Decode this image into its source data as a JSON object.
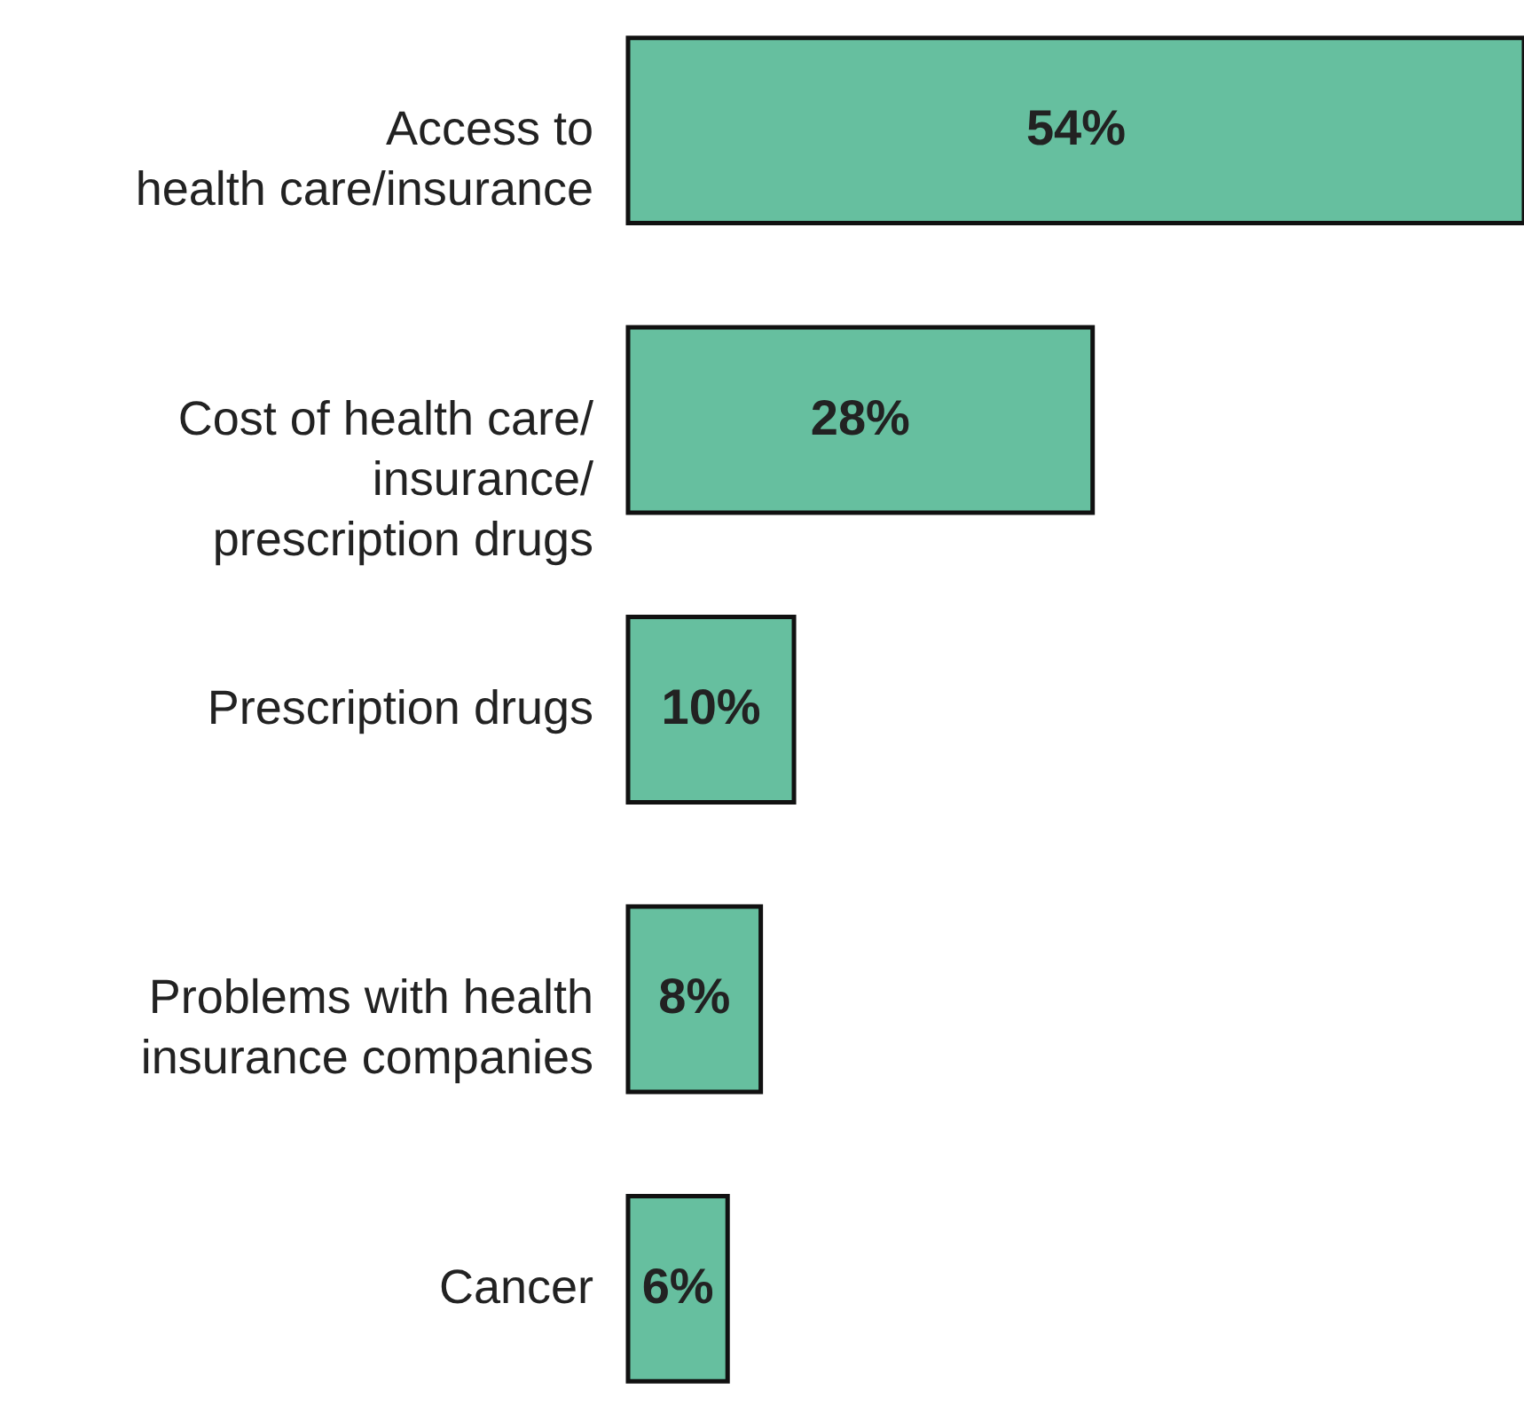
{
  "chart_data": {
    "type": "bar",
    "orientation": "horizontal",
    "categories": [
      "Access to\nhealth care/insurance",
      "Cost of health care/\ninsurance/\nprescription drugs",
      "Prescription drugs",
      "Problems with health\ninsurance companies",
      "Cancer"
    ],
    "values": [
      54,
      28,
      10,
      8,
      6
    ],
    "value_labels": [
      "54%",
      "28%",
      "10%",
      "8%",
      "6%"
    ],
    "color": "#66bf9f"
  }
}
